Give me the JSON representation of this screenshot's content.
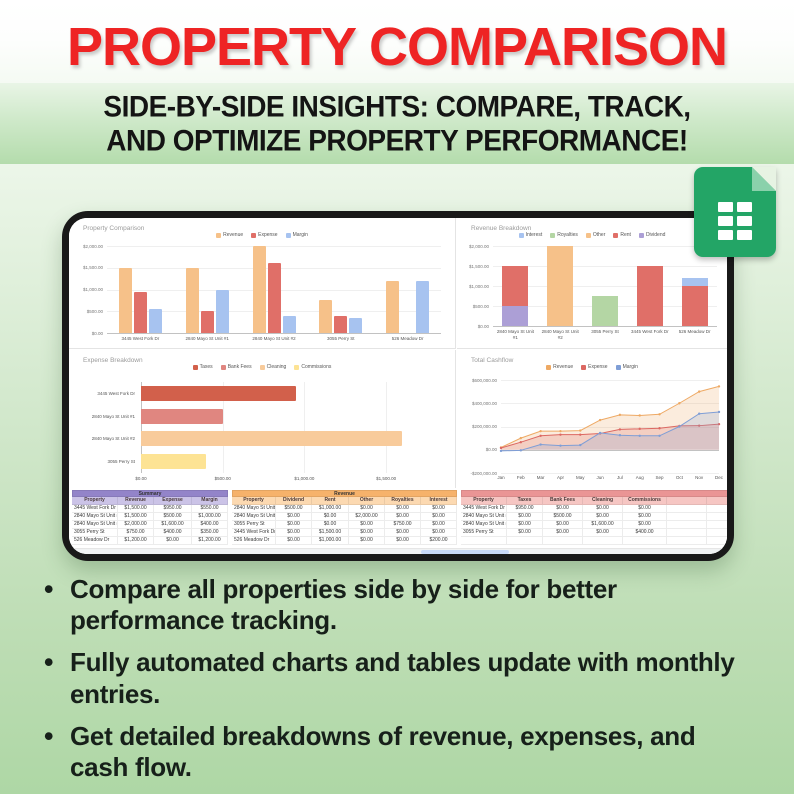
{
  "header": {
    "title": "PROPERTY COMPARISON",
    "subtitle_line1": "SIDE-BY-SIDE INSIGHTS: COMPARE, TRACK,",
    "subtitle_line2": "AND OPTIMIZE PROPERTY PERFORMANCE!",
    "title_color": "#ee2424",
    "band_color": "#bfe2ba"
  },
  "app_icon": {
    "name": "google-sheets-icon",
    "color": "#23a566"
  },
  "bullets": [
    "Compare all properties side by side for better performance tracking.",
    "Fully automated charts and tables update with monthly entries.",
    "Get detailed breakdowns of revenue, expenses, and cash flow."
  ],
  "chart_data": [
    {
      "type": "bar",
      "title": "Property Comparison",
      "categories": [
        "3445 West Fork Dr",
        "2840 Mayo St Unit #1",
        "2840 Mayo St Unit #2",
        "3055 Perry St",
        "526 Meadow Dr"
      ],
      "series": [
        {
          "name": "Revenue",
          "color": "#f6c189",
          "values": [
            1500,
            1500,
            2000,
            750,
            1200
          ]
        },
        {
          "name": "Expense",
          "color": "#e06f68",
          "values": [
            950,
            500,
            1600,
            400,
            0
          ]
        },
        {
          "name": "Margin",
          "color": "#a7c3f0",
          "values": [
            550,
            1000,
            400,
            350,
            1200
          ]
        }
      ],
      "legend": [
        {
          "name": "Revenue",
          "color": "#f6c189"
        },
        {
          "name": "Expense",
          "color": "#e06f68"
        },
        {
          "name": "Margin",
          "color": "#a7c3f0"
        }
      ],
      "ylim": [
        0,
        2000
      ],
      "yticks": [
        [
          0,
          "$0.00"
        ],
        [
          500,
          "$500.00"
        ],
        [
          1000,
          "$1,000.00"
        ],
        [
          1500,
          "$1,500.00"
        ],
        [
          2000,
          "$2,000.00"
        ]
      ]
    },
    {
      "type": "stacked-bar",
      "title": "Revenue Breakdown",
      "categories": [
        "2840 Mayo St Unit #1",
        "2840 Mayo St Unit #2",
        "3055 Perry St",
        "3445 West Fork Dr",
        "526 Meadow Dr"
      ],
      "series": [
        {
          "name": "Dividend",
          "color": "#ac9fd6",
          "values": [
            500,
            0,
            0,
            0,
            0
          ]
        },
        {
          "name": "Rent",
          "color": "#e06f68",
          "values": [
            1000,
            0,
            0,
            1500,
            1000
          ]
        },
        {
          "name": "Other",
          "color": "#f6c189",
          "values": [
            0,
            2000,
            0,
            0,
            0
          ]
        },
        {
          "name": "Royalties",
          "color": "#b4d6a4",
          "values": [
            0,
            0,
            750,
            0,
            0
          ]
        },
        {
          "name": "Interest",
          "color": "#a7c3f0",
          "values": [
            0,
            0,
            0,
            0,
            200
          ]
        }
      ],
      "legend": [
        {
          "name": "Interest",
          "color": "#a7c3f0"
        },
        {
          "name": "Royalties",
          "color": "#b4d6a4"
        },
        {
          "name": "Other",
          "color": "#f6c189"
        },
        {
          "name": "Rent",
          "color": "#e06f68"
        },
        {
          "name": "Dividend",
          "color": "#ac9fd6"
        }
      ],
      "ylim": [
        0,
        2000
      ],
      "yticks": [
        [
          0,
          "$0.00"
        ],
        [
          500,
          "$500.00"
        ],
        [
          1000,
          "$1,000.00"
        ],
        [
          1500,
          "$1,500.00"
        ],
        [
          2000,
          "$2,000.00"
        ]
      ]
    },
    {
      "type": "horizontal-bar",
      "title": "Expense Breakdown",
      "categories": [
        "3445 West Fork Dr",
        "2840 Mayo St Unit #1",
        "2840 Mayo St Unit #2",
        "3055 Perry St"
      ],
      "series": [
        {
          "name": "Taxes",
          "color": "#d2604b",
          "values": [
            950,
            0,
            0,
            0
          ]
        },
        {
          "name": "Bank Fees",
          "color": "#e08680",
          "values": [
            0,
            500,
            0,
            0
          ]
        },
        {
          "name": "Cleaning",
          "color": "#f8cb9b",
          "values": [
            0,
            0,
            1600,
            0
          ]
        },
        {
          "name": "Commissions",
          "color": "#fde394",
          "values": [
            0,
            0,
            0,
            400
          ]
        }
      ],
      "legend": [
        {
          "name": "Taxes",
          "color": "#d2604b"
        },
        {
          "name": "Bank Fees",
          "color": "#e08680"
        },
        {
          "name": "Cleaning",
          "color": "#f8cb9b"
        },
        {
          "name": "Commissions",
          "color": "#fde394"
        }
      ],
      "xlim": [
        0,
        1750
      ],
      "xticks": [
        [
          0,
          "$0.00"
        ],
        [
          500,
          "$500.00"
        ],
        [
          1000,
          "$1,000.00"
        ],
        [
          1500,
          "$1,500.00"
        ]
      ]
    },
    {
      "type": "area",
      "title": "Total Cashflow",
      "x": [
        "Jan",
        "Feb",
        "Mar",
        "Apr",
        "May",
        "Jun",
        "Jul",
        "Aug",
        "Sep",
        "Oct",
        "Nov",
        "Dec"
      ],
      "series": [
        {
          "name": "Revenue",
          "color": "#eea964",
          "values": [
            20000,
            100000,
            160000,
            160000,
            165000,
            255000,
            300000,
            295000,
            305000,
            400000,
            500000,
            545000
          ]
        },
        {
          "name": "Expense",
          "color": "#dc6862",
          "values": [
            15000,
            65000,
            120000,
            130000,
            130000,
            140000,
            175000,
            180000,
            185000,
            205000,
            207000,
            220000
          ]
        },
        {
          "name": "Margin",
          "color": "#7f9ed6",
          "values": [
            -10000,
            -5000,
            45000,
            35000,
            40000,
            145000,
            125000,
            120000,
            120000,
            200000,
            310000,
            325000
          ]
        }
      ],
      "legend": [
        {
          "name": "Revenue",
          "color": "#eea964"
        },
        {
          "name": "Expense",
          "color": "#dc6862"
        },
        {
          "name": "Margin",
          "color": "#7f9ed6"
        }
      ],
      "ylim": [
        -200000,
        600000
      ],
      "yticks": [
        [
          -200000,
          "-$200,000.00"
        ],
        [
          0,
          "$0.00"
        ],
        [
          200000,
          "$200,000.00"
        ],
        [
          400000,
          "$400,000.00"
        ],
        [
          600000,
          "$600,000.00"
        ]
      ]
    }
  ],
  "tables": [
    {
      "title": "Summary",
      "title_bg": "#9384c9",
      "header_bg": "#cbc3e7",
      "columns": [
        "Property",
        "Revenue",
        "Expense",
        "Margin"
      ],
      "rows": [
        [
          "3445 West Fork Dr",
          "$1,500.00",
          "$950.00",
          "$550.00"
        ],
        [
          "2840 Mayo St Unit #1",
          "$1,500.00",
          "$500.00",
          "$1,000.00"
        ],
        [
          "2840 Mayo St Unit #2",
          "$2,000.00",
          "$1,600.00",
          "$400.00"
        ],
        [
          "3055 Perry St",
          "$750.00",
          "$400.00",
          "$350.00"
        ],
        [
          "526 Meadow Dr",
          "$1,200.00",
          "$0.00",
          "$1,200.00"
        ]
      ]
    },
    {
      "title": "Revenue",
      "title_bg": "#f6b26b",
      "header_bg": "#fcd9b1",
      "columns": [
        "Property",
        "Dividend",
        "Rent",
        "Other",
        "Royalties",
        "Interest"
      ],
      "rows": [
        [
          "2840 Mayo St Unit #1",
          "$500.00",
          "$1,000.00",
          "$0.00",
          "$0.00",
          "$0.00"
        ],
        [
          "2840 Mayo St Unit #2",
          "$0.00",
          "$0.00",
          "$2,000.00",
          "$0.00",
          "$0.00"
        ],
        [
          "3055 Perry St",
          "$0.00",
          "$0.00",
          "$0.00",
          "$750.00",
          "$0.00"
        ],
        [
          "3445 West Fork Dr",
          "$0.00",
          "$1,500.00",
          "$0.00",
          "$0.00",
          "$0.00"
        ],
        [
          "526 Meadow Dr",
          "$0.00",
          "$1,000.00",
          "$0.00",
          "$0.00",
          "$200.00"
        ]
      ]
    },
    {
      "title": "",
      "title_bg": "#ea9595",
      "header_bg": "#f6c6c3",
      "columns": [
        "Property",
        "Taxes",
        "Bank Fees",
        "Cleaning",
        "Commissions",
        "",
        ""
      ],
      "rows": [
        [
          "3445 West Fork Dr",
          "$950.00",
          "$0.00",
          "$0.00",
          "$0.00",
          "",
          ""
        ],
        [
          "2840 Mayo St Unit #1",
          "$0.00",
          "$500.00",
          "$0.00",
          "$0.00",
          "",
          ""
        ],
        [
          "2840 Mayo St Unit #2",
          "$0.00",
          "$0.00",
          "$1,600.00",
          "$0.00",
          "",
          ""
        ],
        [
          "3055 Perry St",
          "$0.00",
          "$0.00",
          "$0.00",
          "$400.00",
          "",
          ""
        ],
        [
          "",
          "",
          "",
          "",
          "",
          "",
          ""
        ]
      ]
    }
  ]
}
